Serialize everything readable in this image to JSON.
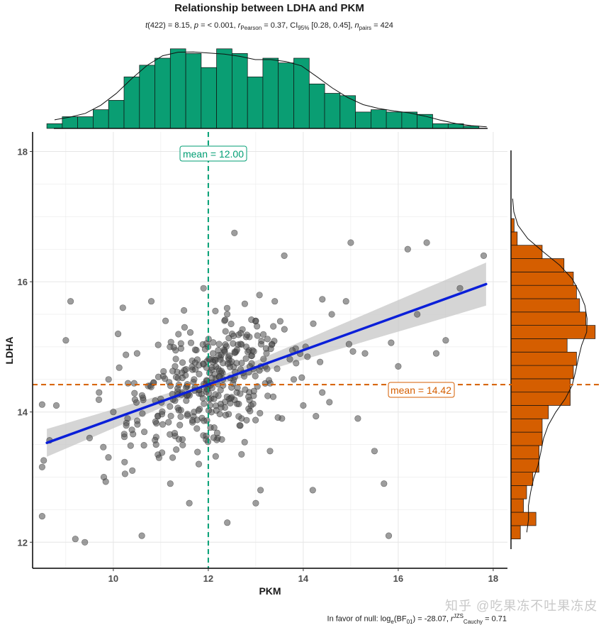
{
  "chart_data": {
    "type": "scatter",
    "title": "Relationship between LDHA and PKM",
    "subtitle": {
      "df": "422",
      "t": "8.15",
      "p": "< 0.001",
      "r_symbol": "r",
      "r_sub": "Pearson",
      "r": "0.37",
      "ci_sub": "95%",
      "ci": "[0.28, 0.45]",
      "n_sub": "pairs",
      "n": "424"
    },
    "xlabel": "PKM",
    "ylabel": "LDHA",
    "xlim": [
      8.3,
      18.3
    ],
    "ylim": [
      11.6,
      18.3
    ],
    "xticks": [
      "10",
      "12",
      "14",
      "16",
      "18"
    ],
    "yticks": [
      "12",
      "14",
      "16",
      "18"
    ],
    "x_mean": 12.0,
    "y_mean": 14.42,
    "x_mean_label": "mean = 12.00",
    "y_mean_label": "mean = 14.42",
    "regression": {
      "intercept": 11.26,
      "slope": 0.2635,
      "x_start": 8.6,
      "x_end": 17.85
    },
    "points": [
      [
        8.5,
        12.4
      ],
      [
        8.8,
        14.1
      ],
      [
        9.0,
        15.1
      ],
      [
        9.1,
        15.7
      ],
      [
        9.2,
        12.05
      ],
      [
        9.4,
        12.0
      ],
      [
        9.7,
        14.3
      ],
      [
        9.9,
        14.5
      ],
      [
        10.1,
        15.2
      ],
      [
        10.2,
        15.6
      ],
      [
        10.4,
        13.1
      ],
      [
        10.6,
        12.1
      ],
      [
        10.8,
        15.7
      ],
      [
        10.9,
        13.5
      ],
      [
        11.0,
        14.2
      ],
      [
        11.1,
        15.4
      ],
      [
        11.2,
        12.9
      ],
      [
        11.3,
        14.7
      ],
      [
        11.4,
        13.8
      ],
      [
        11.5,
        15.3
      ],
      [
        11.6,
        12.6
      ],
      [
        11.7,
        14.0
      ],
      [
        11.8,
        13.2
      ],
      [
        11.9,
        15.9
      ],
      [
        12.0,
        14.4
      ],
      [
        12.1,
        14.9
      ],
      [
        12.2,
        13.6
      ],
      [
        12.3,
        14.6
      ],
      [
        12.4,
        12.3
      ],
      [
        12.5,
        15.2
      ],
      [
        12.6,
        14.3
      ],
      [
        12.7,
        13.9
      ],
      [
        12.8,
        15.0
      ],
      [
        12.9,
        14.1
      ],
      [
        13.0,
        15.4
      ],
      [
        13.1,
        12.8
      ],
      [
        13.2,
        14.7
      ],
      [
        13.3,
        13.4
      ],
      [
        13.4,
        15.7
      ],
      [
        13.6,
        16.4
      ],
      [
        13.8,
        14.5
      ],
      [
        14.0,
        14.1
      ],
      [
        14.2,
        12.8
      ],
      [
        14.4,
        14.3
      ],
      [
        14.6,
        15.5
      ],
      [
        14.9,
        15.7
      ],
      [
        15.0,
        16.6
      ],
      [
        15.3,
        14.9
      ],
      [
        15.5,
        13.4
      ],
      [
        15.7,
        12.9
      ],
      [
        15.8,
        12.1
      ],
      [
        16.0,
        14.7
      ],
      [
        16.2,
        16.5
      ],
      [
        16.4,
        15.5
      ],
      [
        16.6,
        16.6
      ],
      [
        16.8,
        14.9
      ],
      [
        17.0,
        15.1
      ],
      [
        17.3,
        15.9
      ],
      [
        17.8,
        16.4
      ],
      [
        10.5,
        14.9
      ],
      [
        11.05,
        14.55
      ],
      [
        11.55,
        14.25
      ],
      [
        12.45,
        14.75
      ],
      [
        12.85,
        14.05
      ],
      [
        10.3,
        13.9
      ],
      [
        9.5,
        13.6
      ],
      [
        10.0,
        14.0
      ],
      [
        11.25,
        13.3
      ],
      [
        13.55,
        13.9
      ],
      [
        14.05,
        15.0
      ],
      [
        13.0,
        12.6
      ],
      [
        12.55,
        16.75
      ],
      [
        12.15,
        15.55
      ],
      [
        10.85,
        14.45
      ],
      [
        11.75,
        14.95
      ],
      [
        12.7,
        13.35
      ],
      [
        13.85,
        14.75
      ],
      [
        14.55,
        14.15
      ],
      [
        15.15,
        13.9
      ],
      [
        9.8,
        13.0
      ]
    ],
    "top_histogram": {
      "bin_start": 8.6,
      "bin_width": 0.325,
      "counts": [
        2,
        5,
        5,
        8,
        12,
        22,
        27,
        30,
        34,
        32,
        26,
        34,
        32,
        22,
        30,
        28,
        30,
        19,
        15,
        14,
        7,
        8,
        7,
        7,
        6,
        2,
        2,
        1,
        0
      ]
    },
    "right_histogram": {
      "bin_start": 12.05,
      "bin_width": 0.205,
      "counts": [
        3,
        8,
        4,
        5,
        7,
        9,
        9,
        10,
        10,
        12,
        19,
        19,
        20,
        21,
        18,
        27,
        24,
        22,
        21,
        20,
        17,
        10,
        2,
        1,
        1,
        0
      ]
    }
  },
  "caption": {
    "text_prefix": "In favor of null: log",
    "log_sub": "e",
    "bf": "(BF",
    "bf_sub": "01",
    "bf_value": ") = -28.07, ",
    "r_sym": "r",
    "r_sup": "JZS",
    "r_sub": "Cauchy",
    "r_value": " = 0.71"
  },
  "watermark": "知乎 @吃果冻不吐果冻皮",
  "colors": {
    "point": "#4d4d4d",
    "regression": "#0a1fd9",
    "band": "#c7c7c7",
    "x_mean": "#009e73",
    "y_mean": "#d55e00",
    "top_hist": "#0a9e73",
    "right_hist": "#d55e00"
  }
}
